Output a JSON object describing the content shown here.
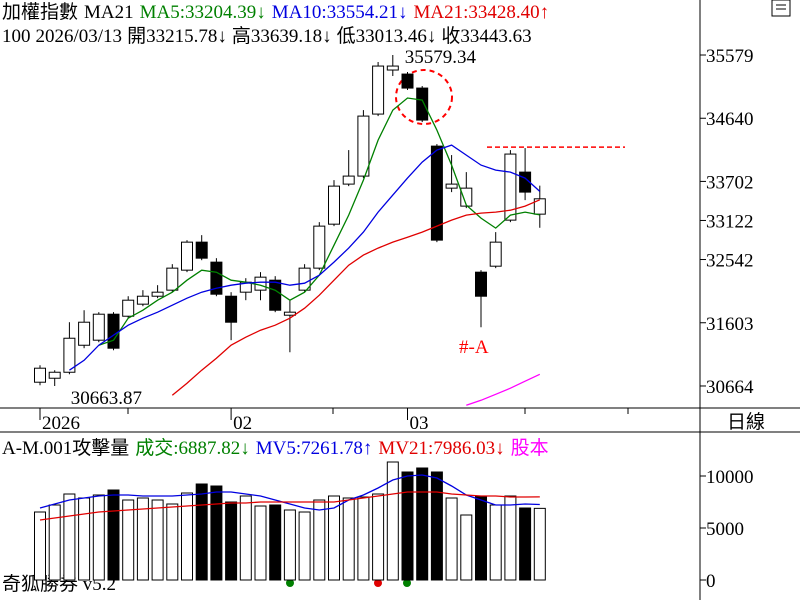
{
  "period_label": "日線",
  "footer": "奇狐勝券 v5.2",
  "chart_data": [
    {
      "type": "candlestick",
      "title": "加權指數",
      "subtitle": "MA21",
      "legend_separator": ":",
      "info": {
        "period": "100",
        "date": "2026/03/13",
        "fields": [
          {
            "label": "開",
            "value": "33215.78",
            "trend": "↓"
          },
          {
            "label": "高",
            "value": "33639.18",
            "trend": "↓"
          },
          {
            "label": "低",
            "value": "33013.46",
            "trend": "↓"
          },
          {
            "label": "收",
            "value": "33443.63"
          }
        ]
      },
      "up_color": "#ffffff",
      "down_color": "#000000",
      "open": [
        30720,
        30779,
        30868,
        31269,
        31344,
        31730,
        31700,
        31879,
        31997,
        32087,
        32384,
        32800,
        32503,
        31997,
        32057,
        32087,
        32235,
        31715,
        32087,
        32414,
        33067,
        33662,
        33781,
        34702,
        35356,
        35296,
        35088,
        34226,
        33602,
        33335,
        32354,
        32443,
        33127,
        33840,
        33215.78
      ],
      "high": [
        30972,
        30898,
        31611,
        31789,
        31760,
        31760,
        31997,
        32087,
        32161,
        32473,
        32830,
        32904,
        32562,
        32057,
        32265,
        32354,
        32295,
        31938,
        32473,
        33097,
        33721,
        34167,
        34761,
        35475,
        35579.34,
        35326,
        35118,
        34256,
        34093,
        33840,
        32384,
        32949,
        34167,
        34197,
        33639.18
      ],
      "low": [
        30675,
        30663.87,
        30838,
        31225,
        31314,
        31195,
        31671,
        31849,
        31968,
        32057,
        32354,
        32532,
        31997,
        31344,
        31938,
        31938,
        31760,
        31165,
        32057,
        32384,
        33038,
        33632,
        33751,
        34672,
        35267,
        35059,
        34583,
        32800,
        33543,
        33305,
        31537,
        32414,
        33097,
        33424,
        33013.46
      ],
      "close": [
        30928,
        30868,
        31373,
        31611,
        31730,
        31225,
        31938,
        31997,
        32057,
        32414,
        32800,
        32562,
        32027,
        31611,
        32205,
        32280,
        31789,
        31760,
        32414,
        33038,
        33632,
        33781,
        34672,
        35415,
        35415,
        35088,
        34613,
        32830,
        33662,
        33602,
        31997,
        32800,
        34108,
        33543,
        33443.63
      ],
      "series": [
        {
          "name": "MA5",
          "value_label": "33204.39",
          "trend": "↓",
          "color": "#008000",
          "values": [
            null,
            null,
            null,
            null,
            31269,
            31344,
            31671,
            31789,
            31938,
            32057,
            32235,
            32384,
            32354,
            32235,
            32205,
            32161,
            32087,
            31938,
            32057,
            32309,
            32755,
            33201,
            33721,
            34316,
            34761,
            34940,
            34910,
            34464,
            33944,
            33350,
            33157,
            33008,
            33201,
            33246,
            33204.39
          ]
        },
        {
          "name": "MA10",
          "value_label": "33554.21",
          "trend": "↓",
          "color": "#0000e0",
          "values": [
            null,
            null,
            30898,
            31046,
            31269,
            31418,
            31566,
            31671,
            31760,
            31864,
            31968,
            32057,
            32116,
            32161,
            32191,
            32205,
            32205,
            32161,
            32191,
            32309,
            32503,
            32711,
            32949,
            33246,
            33498,
            33751,
            33989,
            34167,
            34241,
            34093,
            33944,
            33870,
            33840,
            33751,
            33554.21
          ]
        },
        {
          "name": "MA21",
          "value_label": "33428.40",
          "trend": "↑",
          "color": "#e00000",
          "values": [
            null,
            null,
            null,
            null,
            null,
            null,
            null,
            null,
            null,
            30526,
            30705,
            30898,
            31076,
            31269,
            31388,
            31492,
            31566,
            31671,
            31819,
            32012,
            32235,
            32458,
            32607,
            32711,
            32800,
            32874,
            32949,
            33038,
            33127,
            33201,
            33231,
            33246,
            33275,
            33335,
            33428.4
          ]
        },
        {
          "color": "#ff00ff",
          "values": [
            null,
            null,
            null,
            null,
            null,
            null,
            null,
            null,
            null,
            null,
            null,
            null,
            null,
            null,
            null,
            null,
            null,
            null,
            null,
            null,
            null,
            null,
            null,
            null,
            null,
            null,
            null,
            null,
            null,
            30378,
            30452,
            30541,
            30631,
            30735,
            30838
          ]
        }
      ],
      "ylim": [
        30337,
        36396
      ],
      "yticks": [
        30664,
        31603,
        32542,
        33122,
        33702,
        34640,
        35579
      ],
      "x_labels": [
        {
          "index": 0,
          "label": "2026"
        },
        {
          "index": 13,
          "label": "02"
        },
        {
          "index": 25,
          "label": "03"
        }
      ],
      "annotations": [
        {
          "index": 24,
          "label": "35579.34",
          "color": "#000000"
        },
        {
          "index": 1,
          "label": "30663.87",
          "color": "#000000"
        },
        {
          "index": 30,
          "label": "#-A",
          "color": "#ff0000"
        }
      ],
      "reference_line": {
        "value": 34212,
        "color": "#ff0000"
      }
    },
    {
      "type": "volume",
      "title": "A-M.001攻擊量",
      "legend_separator": ":",
      "series": [
        {
          "name": "成交",
          "value_label": "6887.82",
          "trend": "↓",
          "color": "#008000",
          "kind": "bar",
          "values": [
            6538,
            7212,
            8269,
            7885,
            8173,
            8654,
            7692,
            7885,
            7692,
            7308,
            8365,
            9231,
            9038,
            7500,
            8077,
            7115,
            7212,
            6731,
            6538,
            7692,
            8077,
            7885,
            7981,
            8269,
            11346,
            10385,
            10769,
            10385,
            7885,
            6250,
            8077,
            7212,
            8077,
            6923,
            6887.82
          ]
        },
        {
          "name": "MV5",
          "value_label": "7261.78",
          "trend": "↑",
          "color": "#0000e0",
          "kind": "line",
          "values": [
            6923,
            7308,
            7692,
            7885,
            8077,
            8173,
            8173,
            8077,
            8077,
            8077,
            8173,
            8269,
            8462,
            8462,
            8269,
            8077,
            7692,
            7308,
            6923,
            6731,
            6923,
            7692,
            8173,
            8846,
            9615,
            10000,
            10096,
            9808,
            9038,
            8173,
            7692,
            7212,
            7212,
            7308,
            7261.78
          ]
        },
        {
          "name": "MV21",
          "value_label": "7986.03",
          "trend": "↓",
          "color": "#e00000",
          "kind": "line",
          "values": [
            5769,
            5962,
            6154,
            6346,
            6538,
            6635,
            6731,
            6827,
            6923,
            7019,
            7115,
            7212,
            7308,
            7404,
            7404,
            7500,
            7500,
            7500,
            7500,
            7500,
            7500,
            7692,
            7885,
            8077,
            8269,
            8462,
            8462,
            8462,
            8269,
            8173,
            8077,
            8077,
            7981,
            7981,
            7986.03
          ]
        }
      ],
      "legend_extra": {
        "text": "股本",
        "color": "#ff00ff"
      },
      "ylim": [
        -1923,
        14231
      ],
      "yticks": [
        0,
        5000,
        10000
      ]
    }
  ]
}
